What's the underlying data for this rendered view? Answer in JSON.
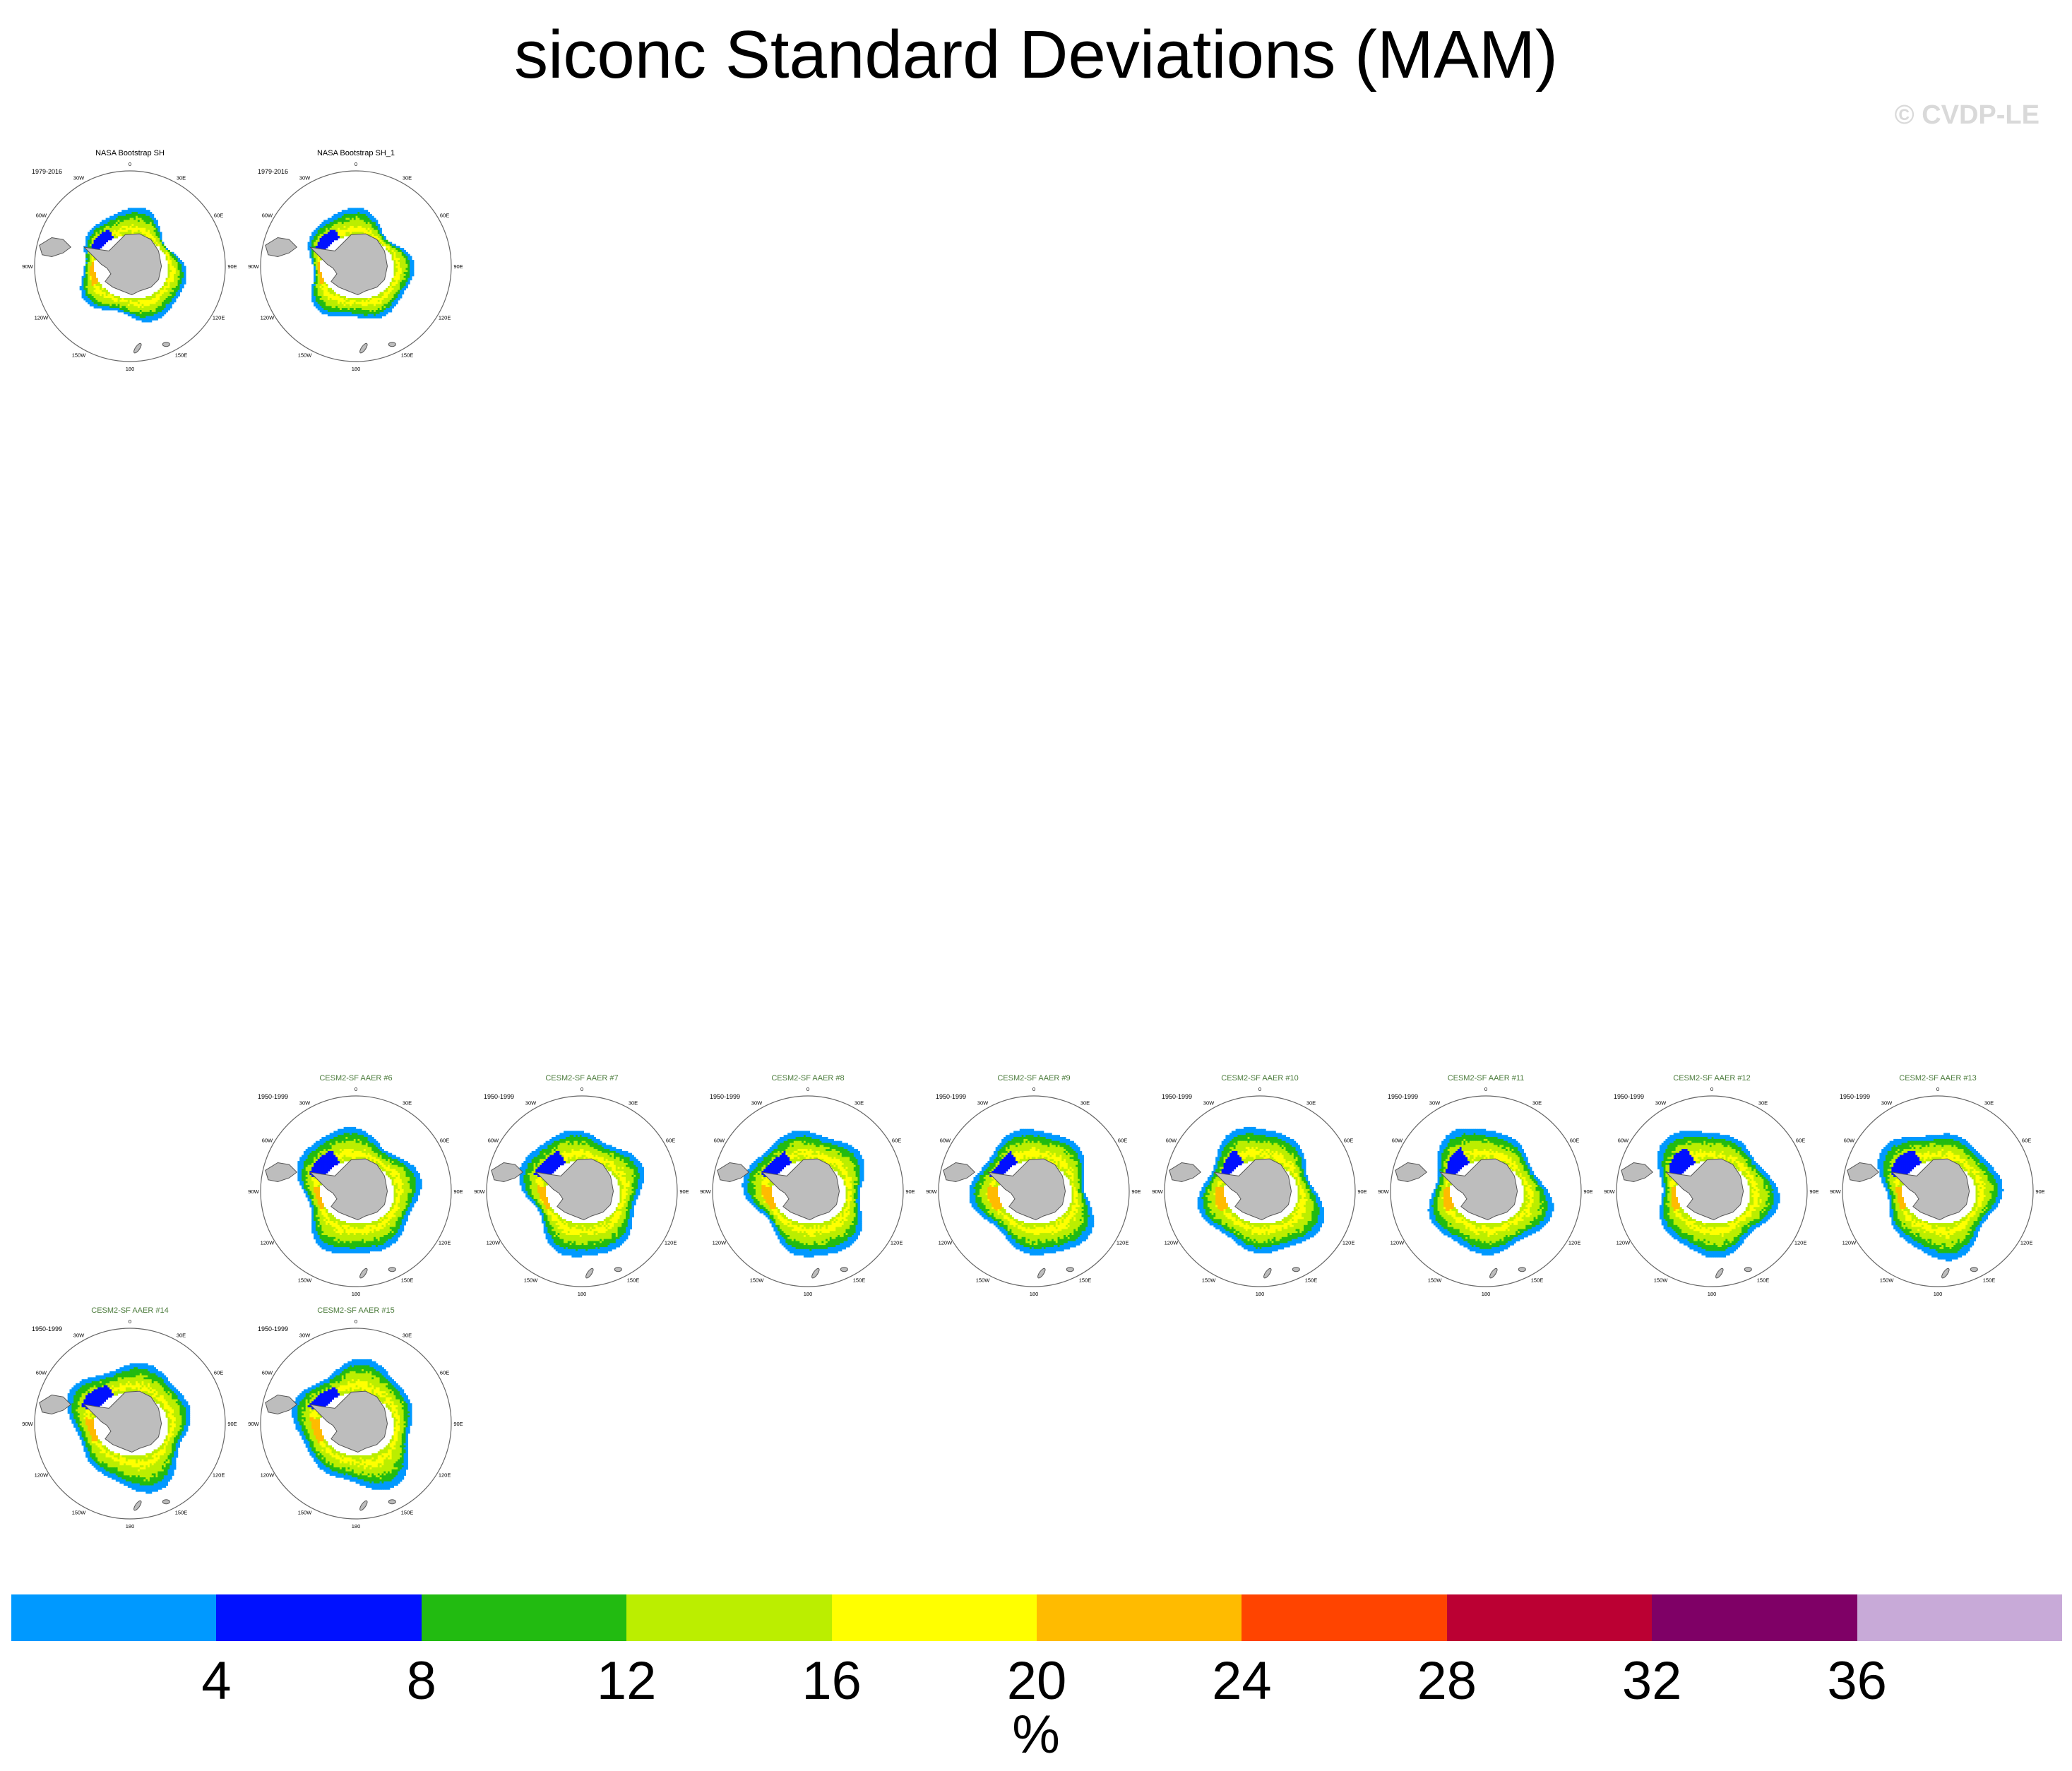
{
  "title": "siconc Standard Deviations (MAM)",
  "watermark": "© CVDP-LE",
  "chart_data": {
    "type": "heatmap",
    "title": "siconc Standard Deviations (MAM)",
    "projection": "south polar stereographic",
    "lon_labels": [
      "0",
      "30E",
      "60E",
      "90E",
      "120E",
      "150E",
      "180",
      "150W",
      "120W",
      "90W",
      "60W",
      "30W"
    ],
    "panels": [
      {
        "title": "NASA Bootstrap SH",
        "period": "1979-2016",
        "kind": "obs",
        "row": 0,
        "col": 0
      },
      {
        "title": "NASA Bootstrap SH_1",
        "period": "1979-2016",
        "kind": "obs",
        "row": 0,
        "col": 1
      },
      {
        "title": "CESM2-SF AAER #6",
        "period": "1950-1999",
        "kind": "model",
        "row": 4,
        "col": 1
      },
      {
        "title": "CESM2-SF AAER #7",
        "period": "1950-1999",
        "kind": "model",
        "row": 4,
        "col": 2
      },
      {
        "title": "CESM2-SF AAER #8",
        "period": "1950-1999",
        "kind": "model",
        "row": 4,
        "col": 3
      },
      {
        "title": "CESM2-SF AAER #9",
        "period": "1950-1999",
        "kind": "model",
        "row": 4,
        "col": 4
      },
      {
        "title": "CESM2-SF AAER #10",
        "period": "1950-1999",
        "kind": "model",
        "row": 4,
        "col": 5
      },
      {
        "title": "CESM2-SF AAER #11",
        "period": "1950-1999",
        "kind": "model",
        "row": 4,
        "col": 6
      },
      {
        "title": "CESM2-SF AAER #12",
        "period": "1950-1999",
        "kind": "model",
        "row": 4,
        "col": 7
      },
      {
        "title": "CESM2-SF AAER #13",
        "period": "1950-1999",
        "kind": "model",
        "row": 4,
        "col": 8
      },
      {
        "title": "CESM2-SF AAER #14",
        "period": "1950-1999",
        "kind": "model",
        "row": 5,
        "col": 0
      },
      {
        "title": "CESM2-SF AAER #15",
        "period": "1950-1999",
        "kind": "model",
        "row": 5,
        "col": 1
      }
    ],
    "colorbar": {
      "levels": [
        "4",
        "8",
        "12",
        "16",
        "20",
        "24",
        "28",
        "32",
        "36"
      ],
      "colors": [
        "#0099ff",
        "#0011ff",
        "#22bb11",
        "#bbee00",
        "#ffff00",
        "#ffbb00",
        "#ff4400",
        "#bb0033",
        "#7f0066",
        "#c8aad8"
      ],
      "units": "%"
    },
    "colors": {
      "land": "#bdbdbd",
      "land_outline": "#555555",
      "obs_title": "#000000",
      "model_title": "#4a7a3a"
    }
  }
}
